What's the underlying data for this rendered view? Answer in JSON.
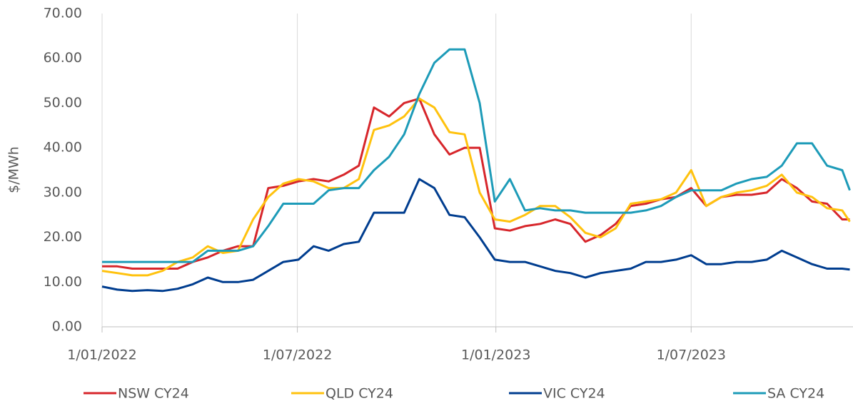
{
  "chart_data": {
    "type": "line",
    "y_label": "$/MWh",
    "x": [
      "2022-01-01",
      "2022-01-15",
      "2022-01-29",
      "2022-02-12",
      "2022-02-26",
      "2022-03-12",
      "2022-03-26",
      "2022-04-09",
      "2022-04-23",
      "2022-05-07",
      "2022-05-21",
      "2022-06-04",
      "2022-06-18",
      "2022-07-02",
      "2022-07-16",
      "2022-07-30",
      "2022-08-13",
      "2022-08-27",
      "2022-09-10",
      "2022-09-24",
      "2022-10-08",
      "2022-10-22",
      "2022-11-05",
      "2022-11-19",
      "2022-12-03",
      "2022-12-17",
      "2022-12-31",
      "2023-01-14",
      "2023-01-28",
      "2023-02-11",
      "2023-02-25",
      "2023-03-11",
      "2023-03-25",
      "2023-04-08",
      "2023-04-22",
      "2023-05-06",
      "2023-05-20",
      "2023-06-03",
      "2023-06-17",
      "2023-07-01",
      "2023-07-15",
      "2023-07-29",
      "2023-08-12",
      "2023-08-26",
      "2023-09-09",
      "2023-09-23",
      "2023-10-07",
      "2023-10-21",
      "2023-11-04",
      "2023-11-18",
      "2023-11-25"
    ],
    "series": [
      {
        "name": "NSW CY24",
        "color": "#d7262b",
        "values": [
          13.5,
          13.5,
          13,
          13,
          13,
          13,
          14.5,
          15.5,
          17,
          18,
          18,
          31,
          31.5,
          32.5,
          33,
          32.5,
          34,
          36,
          49,
          47,
          50,
          51,
          43,
          38.5,
          40,
          40,
          22,
          21.5,
          22.5,
          23,
          24,
          23,
          19,
          20.5,
          23,
          27,
          27.5,
          28.5,
          29,
          31,
          27,
          29,
          29.5,
          29.5,
          30,
          33,
          31,
          28,
          27.5,
          24,
          24
        ]
      },
      {
        "name": "QLD CY24",
        "color": "#ffc20e",
        "values": [
          12.5,
          12,
          11.5,
          11.5,
          12.5,
          14.5,
          15.5,
          18,
          16.5,
          17,
          24,
          29,
          32,
          33,
          32.5,
          31,
          31,
          33,
          44,
          45,
          47,
          51,
          49,
          43.5,
          43,
          30,
          24,
          23.5,
          25,
          27,
          27,
          24.5,
          21,
          20,
          22,
          27.5,
          28,
          28.5,
          30,
          35,
          27,
          29,
          30,
          30.5,
          31.5,
          34,
          30,
          29,
          26.5,
          26,
          23.5
        ]
      },
      {
        "name": "VIC CY24",
        "color": "#003d8f",
        "values": [
          9,
          8.3,
          8,
          8.2,
          8,
          8.5,
          9.5,
          11,
          10,
          10,
          10.5,
          12.5,
          14.5,
          15,
          18,
          17,
          18.5,
          19,
          25.5,
          25.5,
          25.5,
          33,
          31,
          25,
          24.5,
          20,
          15,
          14.5,
          14.5,
          13.5,
          12.5,
          12,
          11,
          12,
          12.5,
          13,
          14.5,
          14.5,
          15,
          16,
          14,
          14,
          14.5,
          14.5,
          15,
          17,
          15.5,
          14,
          13,
          13,
          12.8
        ]
      },
      {
        "name": "SA CY24",
        "color": "#1d9bb8",
        "values": [
          14.5,
          14.5,
          14.5,
          14.5,
          14.5,
          14.5,
          14.5,
          17,
          17,
          17,
          18,
          22.5,
          27.5,
          27.5,
          27.5,
          30.5,
          31,
          31,
          35,
          38,
          43,
          52,
          59,
          62,
          62,
          50,
          28,
          33,
          26,
          26.5,
          26,
          26,
          25.5,
          25.5,
          25.5,
          25.5,
          26,
          27,
          29,
          30.5,
          30.5,
          30.5,
          32,
          33,
          33.5,
          36,
          41,
          41,
          36,
          35,
          30.5
        ]
      }
    ],
    "xlim": [
      "2022-01-01",
      "2023-11-28"
    ],
    "xticks": [
      {
        "value": "2022-01-01",
        "label": "1/01/2022"
      },
      {
        "value": "2022-07-01",
        "label": "1/07/2022"
      },
      {
        "value": "2023-01-01",
        "label": "1/01/2023"
      },
      {
        "value": "2023-07-01",
        "label": "1/07/2023"
      }
    ],
    "ylim": [
      0,
      70
    ],
    "yticks": [
      {
        "value": 0,
        "label": "0.00"
      },
      {
        "value": 10,
        "label": "10.00"
      },
      {
        "value": 20,
        "label": "20.00"
      },
      {
        "value": 30,
        "label": "30.00"
      },
      {
        "value": 40,
        "label": "40.00"
      },
      {
        "value": 50,
        "label": "50.00"
      },
      {
        "value": 60,
        "label": "60.00"
      },
      {
        "value": 70,
        "label": "70.00"
      }
    ],
    "grid": "x",
    "legend": "bottom"
  }
}
